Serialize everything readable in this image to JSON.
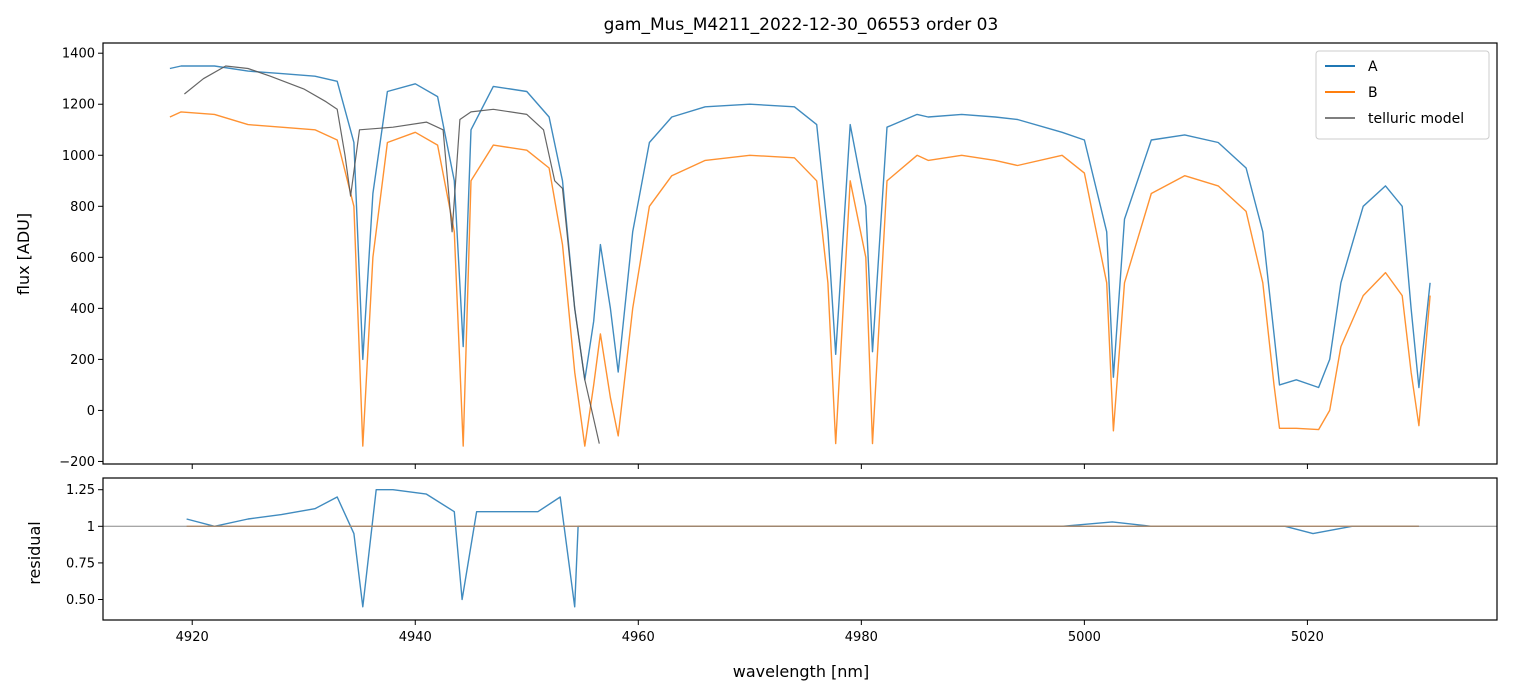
{
  "chart_data": [
    {
      "type": "line",
      "panel": "top",
      "title": "gam_Mus_M4211_2022-12-30_06553  order 03",
      "xlabel": "",
      "ylabel": "flux [ADU]",
      "xlim": [
        4912,
        5037
      ],
      "ylim": [
        -210,
        1440
      ],
      "xticks": [
        4920,
        4940,
        4960,
        4980,
        5000,
        5020
      ],
      "yticks": [
        -200,
        0,
        200,
        400,
        600,
        800,
        1000,
        1200,
        1400
      ],
      "legend_position": "top-right",
      "series": [
        {
          "name": "A",
          "color": "#1f77b4",
          "x": [
            4918,
            4919,
            4922,
            4925,
            4928,
            4931,
            4933,
            4934.5,
            4935.3,
            4936.2,
            4937.5,
            4940,
            4942,
            4943.5,
            4944.3,
            4945,
            4947,
            4950,
            4952,
            4953.2,
            4954.3,
            4955.2,
            4956,
            4956.6,
            4957.5,
            4958.2,
            4959.5,
            4961,
            4963,
            4966,
            4970,
            4974,
            4976,
            4977,
            4977.7,
            4979,
            4980.4,
            4981,
            4982.3,
            4985,
            4986,
            4989,
            4992,
            4994,
            4998,
            5000,
            5002,
            5002.6,
            5003.6,
            5006,
            5009,
            5012,
            5014.5,
            5016,
            5017,
            5017.5,
            5019,
            5021,
            5022,
            5023,
            5025,
            5027,
            5028.5,
            5029.3,
            5030,
            5031
          ],
          "y": [
            1340,
            1350,
            1350,
            1330,
            1320,
            1310,
            1290,
            1050,
            200,
            850,
            1250,
            1280,
            1230,
            900,
            250,
            1100,
            1270,
            1250,
            1150,
            900,
            400,
            120,
            350,
            650,
            400,
            150,
            700,
            1050,
            1150,
            1190,
            1200,
            1190,
            1120,
            700,
            220,
            1120,
            800,
            230,
            1110,
            1160,
            1150,
            1160,
            1150,
            1140,
            1090,
            1060,
            700,
            130,
            750,
            1060,
            1080,
            1050,
            950,
            700,
            300,
            100,
            120,
            90,
            200,
            500,
            800,
            880,
            800,
            400,
            90,
            500
          ]
        },
        {
          "name": "B",
          "color": "#ff7f0e",
          "x": [
            4918,
            4919,
            4922,
            4925,
            4928,
            4931,
            4933,
            4934.5,
            4935.3,
            4936.2,
            4937.5,
            4940,
            4942,
            4943.5,
            4944.3,
            4945,
            4947,
            4950,
            4952,
            4953.2,
            4954.3,
            4955.2,
            4956,
            4956.6,
            4957.5,
            4958.2,
            4959.5,
            4961,
            4963,
            4966,
            4970,
            4974,
            4976,
            4977,
            4977.7,
            4979,
            4980.4,
            4981,
            4982.3,
            4985,
            4986,
            4989,
            4992,
            4994,
            4998,
            5000,
            5002,
            5002.6,
            5003.6,
            5006,
            5009,
            5012,
            5014.5,
            5016,
            5017,
            5017.5,
            5019,
            5021,
            5022,
            5023,
            5025,
            5027,
            5028.5,
            5029.3,
            5030,
            5031
          ],
          "y": [
            1150,
            1170,
            1160,
            1120,
            1110,
            1100,
            1060,
            800,
            -140,
            600,
            1050,
            1090,
            1040,
            700,
            -140,
            900,
            1040,
            1020,
            950,
            650,
            150,
            -140,
            100,
            300,
            50,
            -100,
            400,
            800,
            920,
            980,
            1000,
            990,
            900,
            500,
            -130,
            900,
            600,
            -130,
            900,
            1000,
            980,
            1000,
            980,
            960,
            1000,
            930,
            500,
            -80,
            500,
            850,
            920,
            880,
            780,
            500,
            100,
            -70,
            -70,
            -75,
            0,
            250,
            450,
            540,
            450,
            150,
            -60,
            450
          ]
        },
        {
          "name": "telluric model",
          "color": "#555555",
          "x": [
            4919.3,
            4921,
            4923,
            4925,
            4927,
            4930,
            4932,
            4933,
            4933.7,
            4934.2,
            4935,
            4938,
            4941,
            4942.5,
            4943.3,
            4944,
            4945,
            4947,
            4950,
            4951.5,
            4952.5,
            4953.2,
            4954.3,
            4955.2,
            4956.5
          ],
          "y": [
            1240,
            1300,
            1350,
            1340,
            1310,
            1260,
            1210,
            1180,
            1000,
            840,
            1100,
            1110,
            1130,
            1100,
            700,
            1140,
            1170,
            1180,
            1160,
            1100,
            900,
            870,
            400,
            120,
            -130
          ]
        }
      ]
    },
    {
      "type": "line",
      "panel": "bottom",
      "title": "",
      "xlabel": "wavelength [nm]",
      "ylabel": "residual",
      "xlim": [
        4912,
        5037
      ],
      "ylim": [
        0.36,
        1.33
      ],
      "xticks": [
        4920,
        4940,
        4960,
        4980,
        5000,
        5020
      ],
      "yticks": [
        0.5,
        0.75,
        1.0,
        1.25
      ],
      "reference_line": 1.0,
      "series": [
        {
          "name": "A",
          "color": "#1f77b4",
          "x": [
            4919.5,
            4922,
            4925,
            4928,
            4931,
            4933,
            4934.5,
            4935.3,
            4936.5,
            4938,
            4941,
            4943.5,
            4944.2,
            4945.5,
            4948,
            4951,
            4953,
            4954.3,
            4954.6,
            4959,
            4965,
            4975,
            4985,
            4992.5,
            4998,
            5002.5,
            5006,
            5012,
            5018,
            5020.5,
            5024,
            5030
          ],
          "y": [
            1.05,
            1.0,
            1.05,
            1.08,
            1.12,
            1.2,
            0.95,
            0.45,
            1.25,
            1.25,
            1.22,
            1.1,
            0.5,
            1.1,
            1.1,
            1.1,
            1.2,
            0.45,
            1.0,
            1.0,
            1.0,
            1.0,
            1.0,
            1.0,
            1.0,
            1.03,
            1.0,
            1.0,
            1.0,
            0.95,
            1.0,
            1.0
          ]
        },
        {
          "name": "B",
          "color": "#ff7f0e",
          "x": [
            4919.5,
            4925,
            4930,
            4935,
            4940,
            4945,
            4950,
            4954.5,
            4959,
            4970,
            4980,
            4992.5,
            4998,
            5010,
            5020,
            5030
          ],
          "y": [
            1.0,
            1.0,
            1.0,
            1.0,
            1.0,
            1.0,
            1.0,
            1.0,
            1.0,
            1.0,
            1.0,
            1.0,
            1.0,
            1.0,
            1.0,
            1.0
          ]
        }
      ]
    }
  ]
}
